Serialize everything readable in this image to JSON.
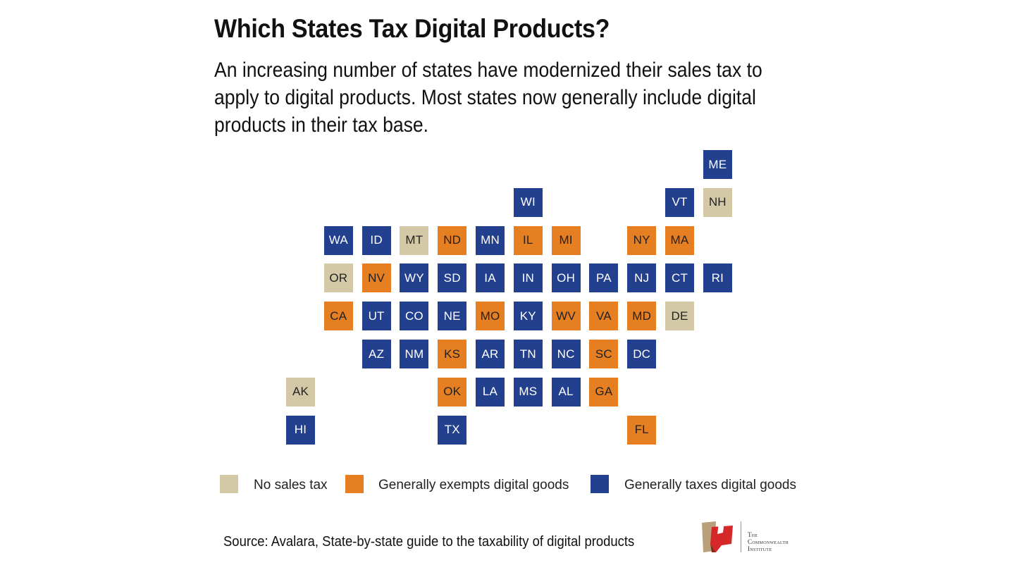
{
  "title": "Which States Tax Digital Products?",
  "subtitle_lines": [
    "An increasing number of states have modernized their sales tax to",
    "apply to digital products. Most states now generally include digital",
    "products in their tax base."
  ],
  "colors": {
    "none": "#d4c9a6",
    "exempt": "#e67e22",
    "taxed": "#22408e",
    "text_light": "#ffffff",
    "text_dark": "#222222"
  },
  "legend": [
    {
      "key": "none",
      "label": "No sales tax"
    },
    {
      "key": "exempt",
      "label": "Generally exempts digital goods"
    },
    {
      "key": "taxed",
      "label": "Generally taxes digital goods"
    }
  ],
  "states": [
    {
      "abbr": "ME",
      "row": 0,
      "col": 11,
      "status": "taxed"
    },
    {
      "abbr": "WI",
      "row": 1,
      "col": 6,
      "status": "taxed"
    },
    {
      "abbr": "VT",
      "row": 1,
      "col": 10,
      "status": "taxed"
    },
    {
      "abbr": "NH",
      "row": 1,
      "col": 11,
      "status": "none"
    },
    {
      "abbr": "WA",
      "row": 2,
      "col": 1,
      "status": "taxed"
    },
    {
      "abbr": "ID",
      "row": 2,
      "col": 2,
      "status": "taxed"
    },
    {
      "abbr": "MT",
      "row": 2,
      "col": 3,
      "status": "none"
    },
    {
      "abbr": "ND",
      "row": 2,
      "col": 4,
      "status": "exempt"
    },
    {
      "abbr": "MN",
      "row": 2,
      "col": 5,
      "status": "taxed"
    },
    {
      "abbr": "IL",
      "row": 2,
      "col": 6,
      "status": "exempt"
    },
    {
      "abbr": "MI",
      "row": 2,
      "col": 7,
      "status": "exempt"
    },
    {
      "abbr": "NY",
      "row": 2,
      "col": 9,
      "status": "exempt"
    },
    {
      "abbr": "MA",
      "row": 2,
      "col": 10,
      "status": "exempt"
    },
    {
      "abbr": "OR",
      "row": 3,
      "col": 1,
      "status": "none"
    },
    {
      "abbr": "NV",
      "row": 3,
      "col": 2,
      "status": "exempt"
    },
    {
      "abbr": "WY",
      "row": 3,
      "col": 3,
      "status": "taxed"
    },
    {
      "abbr": "SD",
      "row": 3,
      "col": 4,
      "status": "taxed"
    },
    {
      "abbr": "IA",
      "row": 3,
      "col": 5,
      "status": "taxed"
    },
    {
      "abbr": "IN",
      "row": 3,
      "col": 6,
      "status": "taxed"
    },
    {
      "abbr": "OH",
      "row": 3,
      "col": 7,
      "status": "taxed"
    },
    {
      "abbr": "PA",
      "row": 3,
      "col": 8,
      "status": "taxed"
    },
    {
      "abbr": "NJ",
      "row": 3,
      "col": 9,
      "status": "taxed"
    },
    {
      "abbr": "CT",
      "row": 3,
      "col": 10,
      "status": "taxed"
    },
    {
      "abbr": "RI",
      "row": 3,
      "col": 11,
      "status": "taxed"
    },
    {
      "abbr": "CA",
      "row": 4,
      "col": 1,
      "status": "exempt"
    },
    {
      "abbr": "UT",
      "row": 4,
      "col": 2,
      "status": "taxed"
    },
    {
      "abbr": "CO",
      "row": 4,
      "col": 3,
      "status": "taxed"
    },
    {
      "abbr": "NE",
      "row": 4,
      "col": 4,
      "status": "taxed"
    },
    {
      "abbr": "MO",
      "row": 4,
      "col": 5,
      "status": "exempt"
    },
    {
      "abbr": "KY",
      "row": 4,
      "col": 6,
      "status": "taxed"
    },
    {
      "abbr": "WV",
      "row": 4,
      "col": 7,
      "status": "exempt"
    },
    {
      "abbr": "VA",
      "row": 4,
      "col": 8,
      "status": "exempt"
    },
    {
      "abbr": "MD",
      "row": 4,
      "col": 9,
      "status": "exempt"
    },
    {
      "abbr": "DE",
      "row": 4,
      "col": 10,
      "status": "none"
    },
    {
      "abbr": "AZ",
      "row": 5,
      "col": 2,
      "status": "taxed"
    },
    {
      "abbr": "NM",
      "row": 5,
      "col": 3,
      "status": "taxed"
    },
    {
      "abbr": "KS",
      "row": 5,
      "col": 4,
      "status": "exempt"
    },
    {
      "abbr": "AR",
      "row": 5,
      "col": 5,
      "status": "taxed"
    },
    {
      "abbr": "TN",
      "row": 5,
      "col": 6,
      "status": "taxed"
    },
    {
      "abbr": "NC",
      "row": 5,
      "col": 7,
      "status": "taxed"
    },
    {
      "abbr": "SC",
      "row": 5,
      "col": 8,
      "status": "exempt"
    },
    {
      "abbr": "DC",
      "row": 5,
      "col": 9,
      "status": "taxed"
    },
    {
      "abbr": "AK",
      "row": 6,
      "col": 0,
      "status": "none"
    },
    {
      "abbr": "OK",
      "row": 6,
      "col": 4,
      "status": "exempt"
    },
    {
      "abbr": "LA",
      "row": 6,
      "col": 5,
      "status": "taxed"
    },
    {
      "abbr": "MS",
      "row": 6,
      "col": 6,
      "status": "taxed"
    },
    {
      "abbr": "AL",
      "row": 6,
      "col": 7,
      "status": "taxed"
    },
    {
      "abbr": "GA",
      "row": 6,
      "col": 8,
      "status": "exempt"
    },
    {
      "abbr": "HI",
      "row": 7,
      "col": 0,
      "status": "taxed"
    },
    {
      "abbr": "TX",
      "row": 7,
      "col": 4,
      "status": "taxed"
    },
    {
      "abbr": "FL",
      "row": 7,
      "col": 9,
      "status": "exempt"
    }
  ],
  "source": "Source: Avalara, State-by-state guide to the taxability of digital products",
  "logo": {
    "icon": "commonwealth-institute-logo",
    "lines": [
      "The",
      "Commonwealth",
      "Institute"
    ]
  }
}
